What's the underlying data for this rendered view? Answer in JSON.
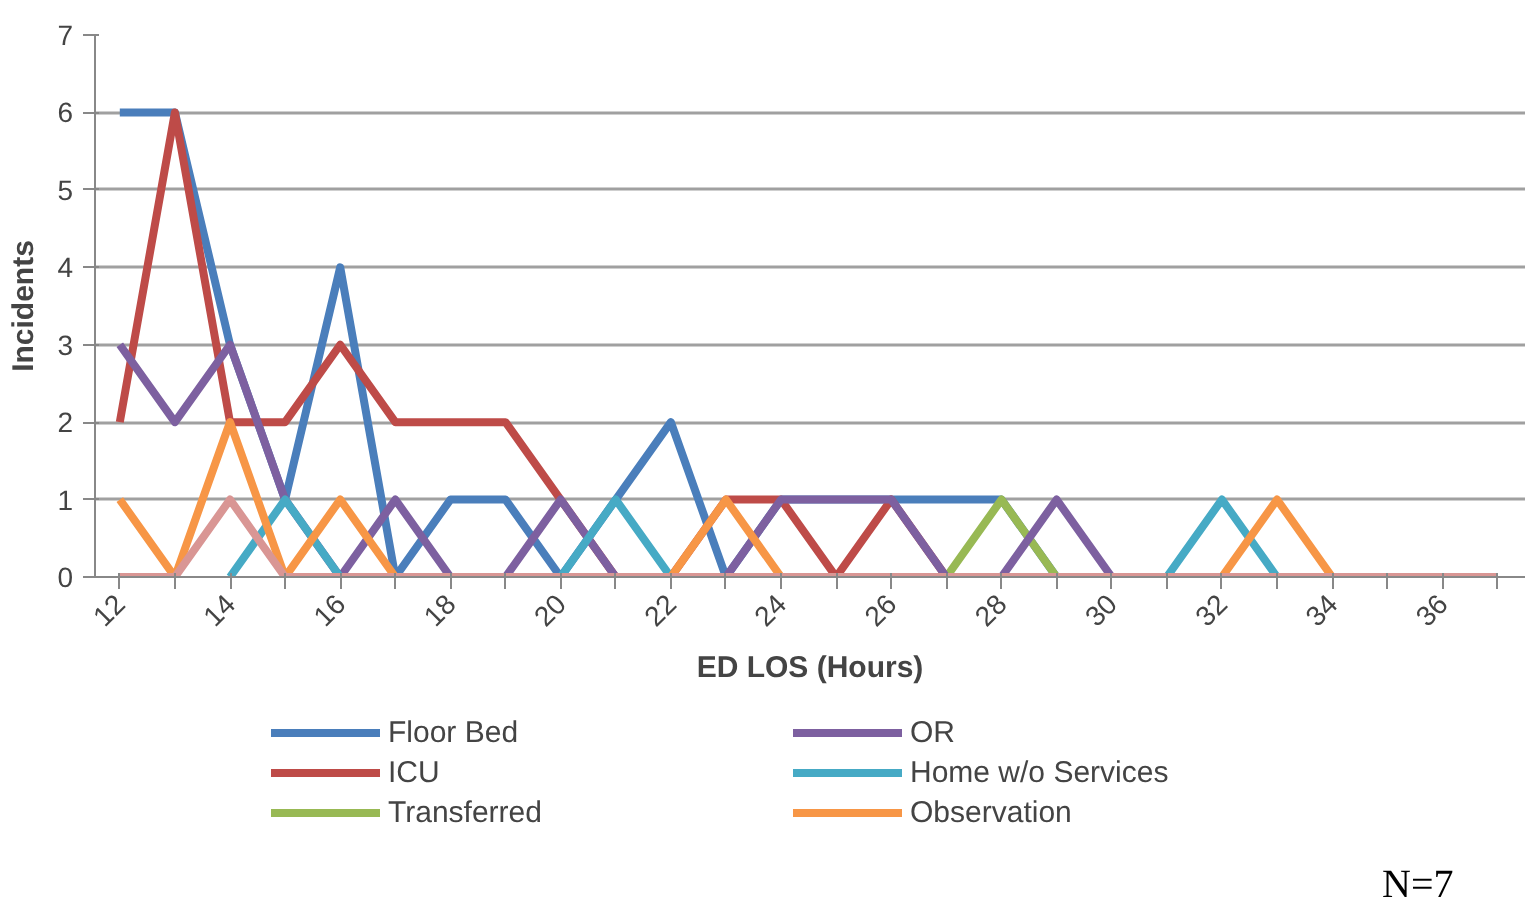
{
  "chart_data": {
    "type": "line",
    "xlabel": "ED LOS (Hours)",
    "ylabel": "Incidents",
    "categories": [
      "12",
      null,
      "14",
      null,
      "16",
      null,
      "18",
      null,
      "20",
      null,
      "22",
      null,
      "24",
      null,
      "26",
      null,
      "28",
      null,
      "30",
      null,
      "32",
      null,
      "34",
      null,
      "36",
      null
    ],
    "series": [
      {
        "name": "Floor Bed",
        "color": "#4a7ebb",
        "values": [
          6,
          6,
          3,
          1,
          4,
          0,
          1,
          1,
          0,
          1,
          2,
          0,
          1,
          1,
          1,
          1,
          1,
          0,
          null,
          null,
          null,
          null,
          null,
          null,
          null,
          null
        ]
      },
      {
        "name": "ICU",
        "color": "#be4b48",
        "values": [
          2,
          6,
          2,
          2,
          3,
          2,
          2,
          2,
          1,
          0,
          0,
          1,
          1,
          0,
          1,
          0,
          null,
          null,
          null,
          null,
          null,
          null,
          null,
          null,
          null,
          null
        ]
      },
      {
        "name": "Transferred",
        "color": "#98b954",
        "values": [
          null,
          null,
          null,
          null,
          null,
          null,
          null,
          null,
          null,
          null,
          null,
          null,
          null,
          null,
          null,
          0,
          1,
          0,
          null,
          null,
          null,
          null,
          null,
          null,
          null,
          null
        ]
      },
      {
        "name": "OR",
        "color": "#7d60a0",
        "values": [
          3,
          2,
          3,
          1,
          0,
          1,
          0,
          0,
          1,
          0,
          null,
          0,
          1,
          1,
          1,
          0,
          0,
          1,
          0,
          null,
          null,
          null,
          null,
          null,
          null,
          null
        ]
      },
      {
        "name": "Home w/o Services",
        "color": "#46aac5",
        "values": [
          null,
          null,
          0,
          1,
          0,
          null,
          null,
          null,
          0,
          1,
          0,
          null,
          null,
          null,
          null,
          null,
          null,
          null,
          null,
          0,
          1,
          0,
          null,
          null,
          null,
          null
        ]
      },
      {
        "name": "Observation",
        "color": "#f79646",
        "values": [
          1,
          0,
          2,
          0,
          1,
          0,
          null,
          null,
          null,
          null,
          0,
          1,
          0,
          null,
          null,
          null,
          null,
          null,
          null,
          null,
          0,
          1,
          0,
          null,
          null,
          null
        ]
      },
      {
        "color": "#d99694",
        "values": [
          0,
          0,
          1,
          0,
          0,
          0,
          0,
          0,
          0,
          0,
          0,
          0,
          0,
          0,
          0,
          0,
          0,
          0,
          0,
          0,
          0,
          0,
          0,
          0,
          0,
          0
        ]
      }
    ],
    "ylim": [
      0,
      7
    ],
    "yticks": [
      0,
      1,
      2,
      3,
      4,
      5,
      6,
      7
    ],
    "grid": "y",
    "legend": "bottom",
    "line_style": "solid",
    "annotations": [
      "N=7"
    ]
  }
}
